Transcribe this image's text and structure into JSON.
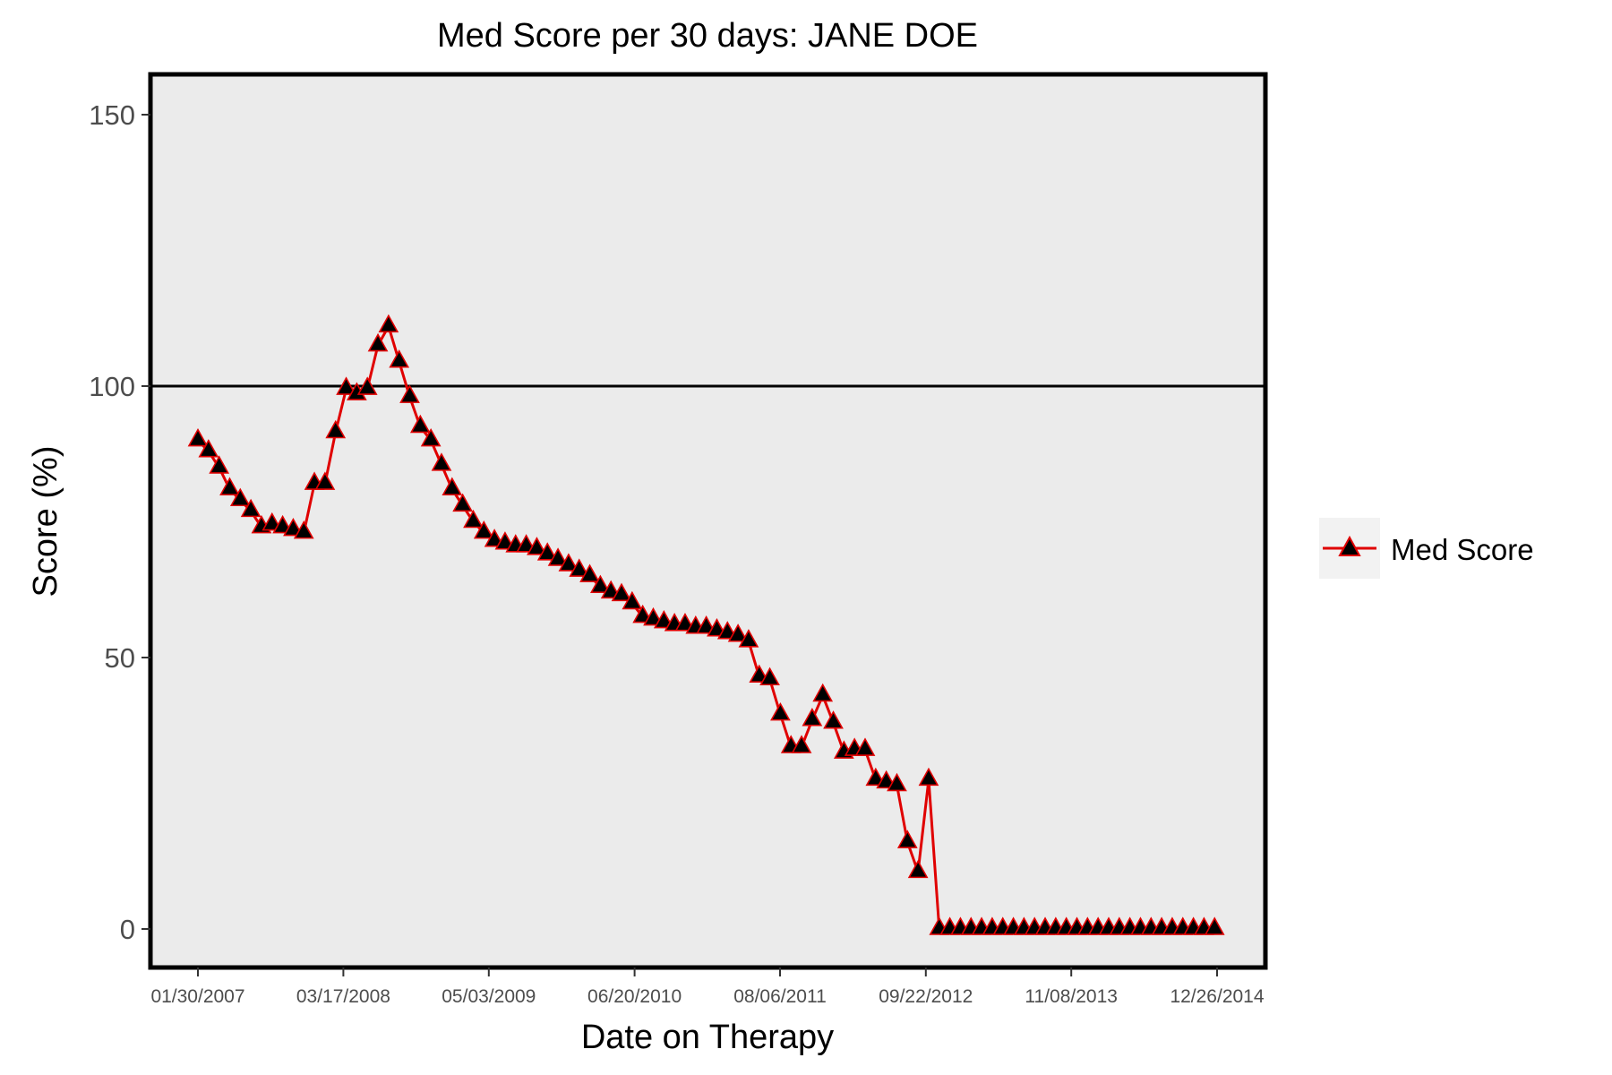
{
  "chart_data": {
    "type": "line",
    "title": "Med Score per 30 days: JANE DOE",
    "xlabel": "Date on Therapy",
    "ylabel": "Score (%)",
    "ylim": [
      -7,
      150
    ],
    "yticks": [
      0,
      50,
      100,
      150
    ],
    "xtick_labels": [
      "01/30/2007",
      "03/17/2008",
      "05/03/2009",
      "06/20/2010",
      "08/06/2011",
      "09/22/2012",
      "11/08/2013",
      "12/26/2014"
    ],
    "reference_line": 100,
    "panel_background": "#ebebeb",
    "series": [
      {
        "name": "Med Score",
        "line_color": "#e00000",
        "marker": "triangle",
        "marker_fill": "#000000",
        "x": [
          "01/30/2007",
          "03/01/2007",
          "03/31/2007",
          "04/30/2007",
          "05/30/2007",
          "06/29/2007",
          "07/29/2007",
          "08/28/2007",
          "09/27/2007",
          "10/27/2007",
          "11/26/2007",
          "12/26/2007",
          "01/25/2008",
          "02/24/2008",
          "03/25/2008",
          "04/24/2008",
          "05/24/2008",
          "06/23/2008",
          "07/23/2008",
          "08/22/2008",
          "09/21/2008",
          "10/21/2008",
          "11/20/2008",
          "12/20/2008",
          "01/19/2009",
          "02/18/2009",
          "03/20/2009",
          "04/19/2009",
          "05/19/2009",
          "06/18/2009",
          "07/18/2009",
          "08/17/2009",
          "09/16/2009",
          "10/16/2009",
          "11/15/2009",
          "12/15/2009",
          "01/14/2010",
          "02/13/2010",
          "03/15/2010",
          "04/14/2010",
          "05/14/2010",
          "06/13/2010",
          "07/13/2010",
          "08/12/2010",
          "09/11/2010",
          "10/11/2010",
          "11/10/2010",
          "12/10/2010",
          "01/09/2011",
          "02/08/2011",
          "03/10/2011",
          "04/09/2011",
          "05/09/2011",
          "06/08/2011",
          "07/08/2011",
          "08/07/2011",
          "09/06/2011",
          "10/06/2011",
          "11/05/2011",
          "12/05/2011",
          "01/04/2012",
          "02/03/2012",
          "03/04/2012",
          "04/03/2012",
          "05/03/2012",
          "06/02/2012",
          "07/02/2012",
          "08/01/2012",
          "08/31/2012",
          "09/30/2012",
          "10/30/2012",
          "11/29/2012",
          "12/29/2012",
          "01/28/2013",
          "02/27/2013",
          "03/29/2013",
          "04/28/2013",
          "05/28/2013",
          "06/27/2013",
          "07/27/2013",
          "08/26/2013",
          "09/25/2013",
          "10/25/2013",
          "11/24/2013",
          "12/24/2013",
          "01/23/2014",
          "02/22/2014",
          "03/24/2014",
          "04/23/2014",
          "05/23/2014",
          "06/22/2014",
          "07/22/2014",
          "08/21/2014",
          "09/20/2014",
          "10/20/2014",
          "11/19/2014",
          "12/19/2014"
        ],
        "values": [
          90,
          88,
          85,
          81,
          79,
          77,
          74,
          74.5,
          74,
          73.5,
          73,
          82,
          82,
          91.5,
          99.5,
          98.5,
          99.5,
          107.5,
          111,
          104.5,
          98,
          92.5,
          90,
          85.5,
          81,
          78,
          75,
          73,
          71.5,
          71,
          70.5,
          70.5,
          70,
          69,
          68,
          67,
          66,
          65,
          63,
          62,
          61.5,
          60,
          57.5,
          57,
          56.5,
          56,
          56,
          55.5,
          55.5,
          55,
          54.5,
          54,
          53,
          46.5,
          46,
          39.5,
          33.5,
          33.5,
          38.5,
          43,
          38,
          32.5,
          33,
          33,
          27.5,
          27,
          26.5,
          16,
          10.5,
          27.5,
          0,
          0,
          0,
          0,
          0,
          0,
          0,
          0,
          0,
          0,
          0,
          0,
          0,
          0,
          0,
          0,
          0,
          0,
          0,
          0,
          0,
          0,
          0,
          0,
          0,
          0,
          0
        ]
      }
    ],
    "legend": {
      "position": "right"
    }
  }
}
